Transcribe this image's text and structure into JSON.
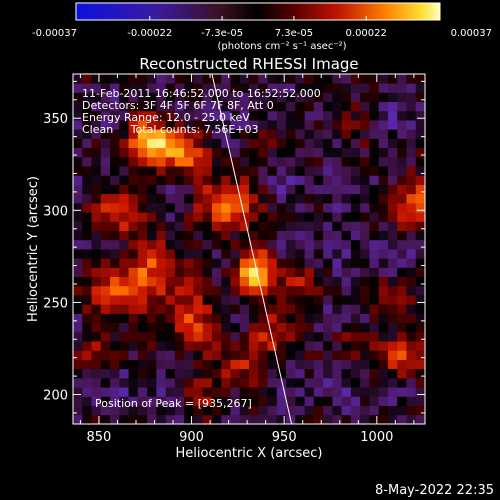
{
  "chart_data": {
    "type": "heatmap",
    "title": "Reconstructed RHESSI Image",
    "xlabel": "Heliocentric X (arcsec)",
    "ylabel": "Heliocentric Y (arcsec)",
    "xlim": [
      836,
      1026
    ],
    "ylim": [
      184,
      374
    ],
    "xticks": [
      850,
      900,
      950,
      1000
    ],
    "yticks": [
      200,
      250,
      300,
      350
    ],
    "xtick_labels": [
      "850",
      "900",
      "950",
      "1000"
    ],
    "ytick_labels": [
      "200",
      "250",
      "300",
      "350"
    ],
    "colorbar": {
      "range": [
        -0.00037,
        0.00037
      ],
      "tick_values": [
        -0.00037,
        -0.00022,
        -7.3e-05,
        7.3e-05,
        0.00022,
        0.00037
      ],
      "tick_labels": [
        "-0.00037",
        "-0.00022",
        "-7.3e-05",
        "7.3e-05",
        "0.00022",
        "0.00037"
      ],
      "unit_label": "(photons cm⁻² s⁻¹ asec⁻²)"
    },
    "annotations": [
      "11-Feb-2011 16:46:52.000 to 16:52:52.000",
      "Detectors: 3F 4F 5F 6F 7F 8F, Att 0",
      "Energy Range: 12.0 - 25.0 keV",
      "Clean     Total counts: 7.56E+03"
    ],
    "peak_label": "Position of Peak = [935,267]",
    "peak": [
      935,
      267
    ],
    "limb_line": [
      [
        911,
        374
      ],
      [
        954,
        184
      ]
    ],
    "sources": [
      {
        "x": 935,
        "y": 267,
        "sigma": 9,
        "amp": 1.0
      },
      {
        "x": 920,
        "y": 305,
        "sigma": 11,
        "amp": 0.8
      },
      {
        "x": 878,
        "y": 338,
        "sigma": 10,
        "amp": 0.85
      },
      {
        "x": 895,
        "y": 330,
        "sigma": 9,
        "amp": 0.6
      },
      {
        "x": 860,
        "y": 300,
        "sigma": 10,
        "amp": 0.6
      },
      {
        "x": 862,
        "y": 255,
        "sigma": 12,
        "amp": 0.7
      },
      {
        "x": 885,
        "y": 270,
        "sigma": 11,
        "amp": 0.6
      },
      {
        "x": 900,
        "y": 240,
        "sigma": 10,
        "amp": 0.65
      },
      {
        "x": 945,
        "y": 235,
        "sigma": 9,
        "amp": 0.55
      },
      {
        "x": 960,
        "y": 260,
        "sigma": 8,
        "amp": 0.4
      },
      {
        "x": 925,
        "y": 215,
        "sigma": 10,
        "amp": 0.45
      },
      {
        "x": 1020,
        "y": 305,
        "sigma": 10,
        "amp": 0.7
      },
      {
        "x": 1010,
        "y": 250,
        "sigma": 8,
        "amp": 0.45
      },
      {
        "x": 1013,
        "y": 220,
        "sigma": 9,
        "amp": 0.55
      },
      {
        "x": 985,
        "y": 230,
        "sigma": 7,
        "amp": 0.3
      },
      {
        "x": 985,
        "y": 350,
        "sigma": 9,
        "amp": 0.3
      },
      {
        "x": 850,
        "y": 225,
        "sigma": 8,
        "amp": 0.35
      },
      {
        "x": 945,
        "y": 340,
        "sigma": 8,
        "amp": 0.2
      },
      {
        "x": 905,
        "y": 200,
        "sigma": 8,
        "amp": 0.35
      }
    ],
    "grid": false
  },
  "footer": {
    "date_label": "8-May-2022 22:35"
  }
}
